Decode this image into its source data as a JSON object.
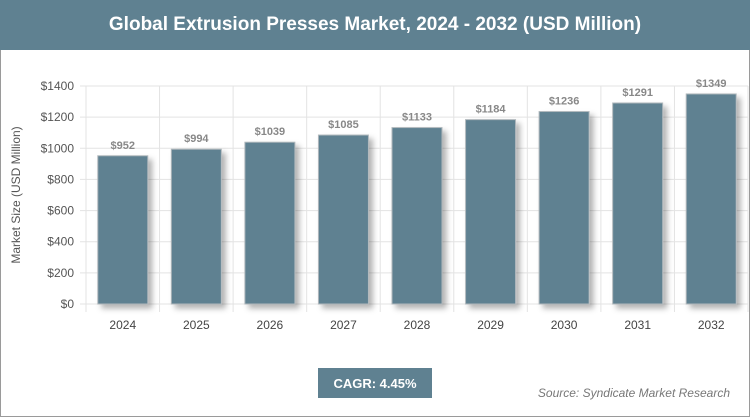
{
  "chart_data": {
    "type": "bar",
    "title": "Global Extrusion Presses Market, 2024 - 2032 (USD Million)",
    "xlabel": "",
    "ylabel": "Market Size (USD Million)",
    "categories": [
      "2024",
      "2025",
      "2026",
      "2027",
      "2028",
      "2029",
      "2030",
      "2031",
      "2032"
    ],
    "values": [
      952,
      994,
      1039,
      1085,
      1133,
      1184,
      1236,
      1291,
      1349
    ],
    "data_labels": [
      "$952",
      "$994",
      "$1039",
      "$1085",
      "$1133",
      "$1184",
      "$1236",
      "$1291",
      "$1349"
    ],
    "ylim": [
      0,
      1400
    ],
    "yticks": [
      0,
      200,
      400,
      600,
      800,
      1000,
      1200,
      1400
    ],
    "ytick_labels": [
      "$0",
      "$200",
      "$400",
      "$600",
      "$800",
      "$1000",
      "$1200",
      "$1400"
    ],
    "grid": true,
    "bar_color": "#5f8191"
  },
  "cagr": "CAGR: 4.45%",
  "source": "Source: Syndicate Market Research"
}
